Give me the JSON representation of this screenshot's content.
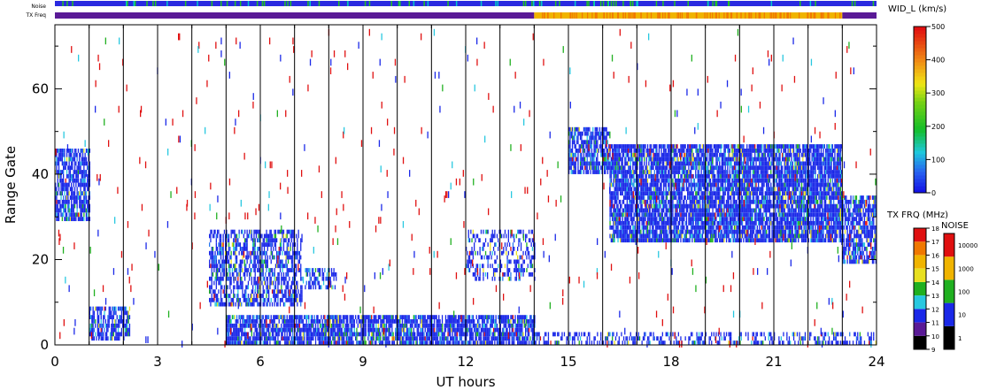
{
  "chart_data": {
    "type": "heatmap",
    "xlabel": "UT hours",
    "ylabel": "Range Gate",
    "x_range": [
      0,
      24
    ],
    "y_range": [
      0,
      75
    ],
    "x_ticks": [
      0,
      3,
      6,
      9,
      12,
      15,
      18,
      21,
      24
    ],
    "y_ticks": [
      0,
      20,
      40,
      60
    ],
    "noise_strip_label": "Noise",
    "txfreq_strip_label": "TX Freq",
    "txfreq_segments": [
      {
        "start": 0,
        "end": 14,
        "level": "low"
      },
      {
        "start": 14,
        "end": 23,
        "level": "high"
      },
      {
        "start": 23,
        "end": 24,
        "level": "low"
      }
    ],
    "primary_colorbar": {
      "title": "WID_L (km/s)",
      "ticks": [
        0,
        100,
        200,
        300,
        400,
        500
      ],
      "range": [
        0,
        500
      ]
    },
    "txfreq_colorbar": {
      "title": "TX FRQ (MHz)",
      "ticks": [
        9,
        10,
        11,
        12,
        13,
        14,
        15,
        16,
        17,
        18
      ]
    },
    "noise_colorbar": {
      "title": "NOISE",
      "ticks": [
        "1",
        "10",
        "100",
        "1000",
        "10000"
      ]
    },
    "scatter_regions": [
      {
        "x0": 0.0,
        "x1": 1.0,
        "g0": 29,
        "g1": 46,
        "density": 0.75
      },
      {
        "x0": 1.0,
        "x1": 2.2,
        "g0": 1,
        "g1": 9,
        "density": 0.7
      },
      {
        "x0": 4.5,
        "x1": 7.2,
        "g0": 9,
        "g1": 27,
        "density": 0.6
      },
      {
        "x0": 7.3,
        "x1": 8.2,
        "g0": 13,
        "g1": 18,
        "density": 0.5
      },
      {
        "x0": 5.0,
        "x1": 14.0,
        "g0": 0,
        "g1": 7,
        "density": 0.8
      },
      {
        "x0": 12.0,
        "x1": 14.0,
        "g0": 15,
        "g1": 27,
        "density": 0.35
      },
      {
        "x0": 15.0,
        "x1": 16.2,
        "g0": 40,
        "g1": 51,
        "density": 0.75
      },
      {
        "x0": 16.2,
        "x1": 23.0,
        "g0": 24,
        "g1": 47,
        "density": 0.85
      },
      {
        "x0": 23.0,
        "x1": 24.0,
        "g0": 19,
        "g1": 35,
        "density": 0.75
      },
      {
        "x0": 14.0,
        "x1": 24.0,
        "g0": 0,
        "g1": 3,
        "density": 0.4
      }
    ]
  }
}
